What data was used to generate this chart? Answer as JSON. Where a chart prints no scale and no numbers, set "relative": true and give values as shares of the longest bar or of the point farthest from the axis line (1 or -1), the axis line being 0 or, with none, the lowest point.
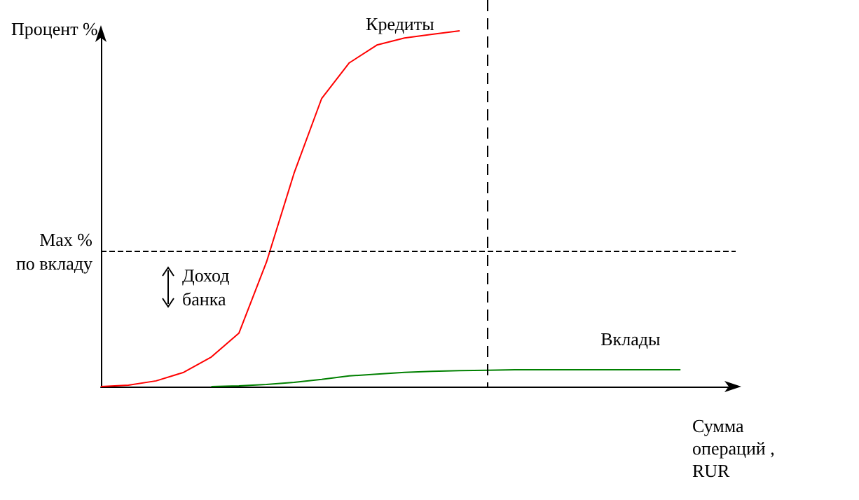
{
  "chart_data": {
    "type": "line",
    "relative": true,
    "ylabel": "Процент %",
    "xlabel": "Сумма\nопераций ,\nRUR",
    "categories": [
      null,
      null,
      null,
      null,
      null,
      null,
      null,
      null,
      null,
      null,
      null,
      null,
      null,
      null,
      null,
      null,
      null,
      null,
      null,
      null,
      null,
      null,
      null,
      null
    ],
    "grid": false,
    "legend": false,
    "marker": "none",
    "line_style": "solid",
    "series": [
      {
        "name": "Кредиты",
        "color": "#ff0000",
        "values": [
          0,
          0.004,
          0.016,
          0.04,
          0.083,
          0.15,
          0.35,
          0.6,
          0.81,
          0.91,
          0.96,
          0.98,
          0.99,
          1,
          null,
          null,
          null,
          null,
          null,
          null,
          null,
          null,
          null,
          null
        ]
      },
      {
        "name": "Вклады",
        "color": "#008000",
        "values": [
          null,
          null,
          null,
          null,
          0,
          0.002,
          0.006,
          0.012,
          0.02,
          0.03,
          0.035,
          0.04,
          0.043,
          0.045,
          0.046,
          0.047,
          0.047,
          0.047,
          0.047,
          0.047,
          0.047,
          0.047,
          null,
          null
        ]
      }
    ],
    "ref_lines": [
      {
        "axis": "y",
        "value": 0.378,
        "label": "Max %\nпо вкладу",
        "color": "#000000",
        "line_style": "dashed"
      }
    ],
    "annotations": [
      "Доход\nбанка"
    ]
  }
}
